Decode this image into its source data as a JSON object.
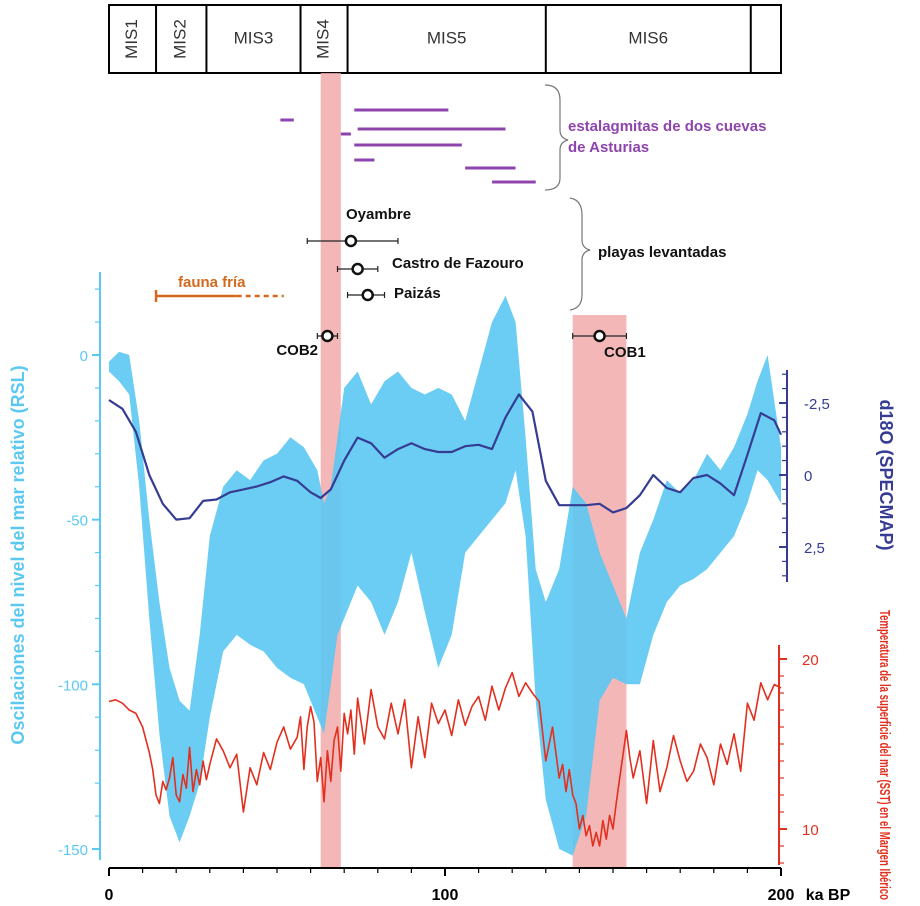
{
  "colors": {
    "rsl_fill": "#5BC8F2",
    "rsl_axis": "#5BC8F2",
    "d18o_line": "#353C92",
    "sst_line": "#E2301F",
    "highlight": "#F2AAAA",
    "stalagmite": "#8E44AD",
    "fauna": "#D2691E",
    "text": "#111111"
  },
  "chart_data": {
    "type": "line",
    "x_axis": {
      "range": [
        0,
        200
      ],
      "ticks": [
        "0",
        "100",
        "200"
      ],
      "unit_label": "ka BP"
    },
    "mis_stages": [
      {
        "label": "MIS1",
        "start": 0,
        "end": 14,
        "orientation": "vertical"
      },
      {
        "label": "MIS2",
        "start": 14,
        "end": 29,
        "orientation": "vertical"
      },
      {
        "label": "MIS3",
        "start": 29,
        "end": 57,
        "orientation": "horizontal"
      },
      {
        "label": "MIS4",
        "start": 57,
        "end": 71,
        "orientation": "vertical"
      },
      {
        "label": "MIS5",
        "start": 71,
        "end": 130,
        "orientation": "horizontal"
      },
      {
        "label": "MIS6",
        "start": 130,
        "end": 191,
        "orientation": "horizontal"
      }
    ],
    "highlight_bands": [
      {
        "start": 63,
        "end": 69
      },
      {
        "start": 138,
        "end": 154
      }
    ],
    "stalagmites": {
      "label_lines": [
        "estalagmitas de dos cuevas",
        "de Asturias"
      ],
      "segments": [
        {
          "x1": 51,
          "x2": 55
        },
        {
          "x1": 73,
          "x2": 101
        },
        {
          "x1": 69,
          "x2": 72
        },
        {
          "x1": 74,
          "x2": 118
        },
        {
          "x1": 73,
          "x2": 105
        },
        {
          "x1": 73,
          "x2": 79
        },
        {
          "x1": 106,
          "x2": 121
        },
        {
          "x1": 114,
          "x2": 127
        }
      ]
    },
    "raised_beaches": {
      "label": "playas levantadas",
      "points": [
        {
          "label": "Oyambre",
          "x": 72,
          "xmin": 59,
          "xmax": 86
        },
        {
          "label": "Castro de Fazouro",
          "x": 74,
          "xmin": 68,
          "xmax": 80
        },
        {
          "label": "Paizás",
          "x": 77,
          "xmin": 71,
          "xmax": 82
        },
        {
          "label": "COB2",
          "x": 65,
          "xmin": 62,
          "xmax": 68
        },
        {
          "label": "COB1",
          "x": 146,
          "xmin": 138,
          "xmax": 154
        }
      ]
    },
    "fauna_fria": {
      "label": "fauna fría",
      "solid": [
        14,
        38
      ],
      "dashed": [
        38,
        52
      ]
    },
    "rsl": {
      "name": "Oscilaciones del nivel del mar relativo (RSL)",
      "ylim": [
        -155,
        25
      ],
      "ticks": [
        "0",
        "-50",
        "-100",
        "-150"
      ],
      "x": [
        0,
        3,
        6,
        9,
        12,
        15,
        18,
        21,
        24,
        27,
        30,
        34,
        38,
        42,
        46,
        50,
        54,
        58,
        62,
        64,
        66,
        68,
        70,
        74,
        78,
        82,
        86,
        90,
        94,
        98,
        102,
        106,
        110,
        114,
        118,
        121,
        124,
        127,
        130,
        134,
        138,
        142,
        146,
        150,
        154,
        158,
        162,
        166,
        170,
        174,
        178,
        182,
        186,
        190,
        193,
        196,
        200
      ],
      "upper": [
        -2,
        1,
        0,
        -20,
        -50,
        -75,
        -95,
        -105,
        -108,
        -85,
        -55,
        -40,
        -35,
        -38,
        -32,
        -30,
        -25,
        -28,
        -35,
        -45,
        -40,
        -25,
        -10,
        -5,
        -15,
        -8,
        -5,
        -10,
        -12,
        -10,
        -12,
        -20,
        -5,
        10,
        18,
        10,
        -25,
        -65,
        -75,
        -65,
        -40,
        -45,
        -60,
        -70,
        -80,
        -60,
        -50,
        -38,
        -42,
        -38,
        -30,
        -35,
        -28,
        -18,
        -8,
        0,
        -28
      ],
      "lower": [
        -5,
        -8,
        -12,
        -40,
        -80,
        -115,
        -140,
        -148,
        -140,
        -130,
        -110,
        -90,
        -85,
        -88,
        -90,
        -95,
        -98,
        -100,
        -110,
        -115,
        -100,
        -85,
        -80,
        -70,
        -75,
        -85,
        -75,
        -60,
        -78,
        -95,
        -85,
        -60,
        -55,
        -50,
        -45,
        -35,
        -55,
        -105,
        -135,
        -150,
        -152,
        -140,
        -105,
        -98,
        -100,
        -100,
        -85,
        -75,
        -70,
        -68,
        -65,
        -60,
        -55,
        -45,
        -35,
        -38,
        -45
      ]
    },
    "d18o": {
      "name": "d18O (SPECMAP)",
      "ylim": [
        4.0,
        -4.0
      ],
      "ticks": [
        "-2,5",
        "0",
        "2,5"
      ],
      "x": [
        0,
        4,
        8,
        12,
        16,
        20,
        24,
        28,
        32,
        36,
        40,
        44,
        48,
        52,
        56,
        60,
        63,
        66,
        70,
        74,
        78,
        82,
        86,
        90,
        94,
        98,
        102,
        106,
        110,
        114,
        118,
        122,
        126,
        130,
        134,
        138,
        142,
        146,
        150,
        154,
        158,
        162,
        166,
        170,
        174,
        178,
        182,
        186,
        190,
        194,
        198,
        200
      ],
      "values": [
        -2.6,
        -2.3,
        -1.5,
        0.0,
        1.0,
        1.55,
        1.5,
        0.9,
        0.85,
        0.6,
        0.5,
        0.4,
        0.25,
        0.05,
        0.2,
        0.6,
        0.8,
        0.5,
        -0.5,
        -1.3,
        -1.1,
        -0.6,
        -0.9,
        -1.1,
        -0.9,
        -0.8,
        -0.8,
        -1.0,
        -1.05,
        -0.9,
        -2.0,
        -2.8,
        -2.2,
        0.2,
        1.05,
        1.05,
        1.05,
        1.0,
        1.3,
        1.15,
        0.7,
        0.0,
        0.45,
        0.6,
        0.1,
        0.0,
        0.3,
        0.7,
        -0.7,
        -2.15,
        -1.9,
        -1.4
      ]
    },
    "sst": {
      "name": "Temperatura de la superficie del mar (SST) en el Margen Ibérico",
      "ylim": [
        8,
        20
      ],
      "ticks": [
        "20",
        "10"
      ],
      "x": [
        0,
        2,
        4,
        6,
        8,
        10,
        12,
        13,
        14,
        15,
        16,
        17,
        18,
        19,
        20,
        21,
        22,
        23,
        24,
        25,
        26,
        27,
        28,
        29,
        30,
        32,
        34,
        36,
        38,
        40,
        42,
        44,
        46,
        48,
        50,
        52,
        54,
        56,
        57,
        58,
        59,
        60,
        61,
        62,
        63,
        64,
        65,
        66,
        67,
        68,
        69,
        70,
        71,
        72,
        73,
        74,
        76,
        78,
        80,
        82,
        84,
        86,
        88,
        90,
        92,
        94,
        96,
        98,
        100,
        102,
        104,
        106,
        108,
        110,
        112,
        114,
        116,
        118,
        120,
        122,
        124,
        126,
        128,
        130,
        132,
        134,
        135,
        136,
        137,
        138,
        139,
        140,
        141,
        142,
        143,
        144,
        145,
        146,
        147,
        148,
        149,
        150,
        151,
        152,
        153,
        154,
        155,
        156,
        158,
        160,
        162,
        164,
        166,
        168,
        170,
        172,
        174,
        176,
        178,
        180,
        182,
        184,
        186,
        188,
        190,
        192,
        194,
        196,
        198,
        200
      ],
      "values": [
        17.5,
        17.6,
        17.4,
        17.0,
        16.8,
        16.0,
        14.5,
        13.5,
        12.0,
        11.5,
        12.8,
        12.3,
        13.0,
        14.2,
        12.0,
        11.6,
        13.2,
        12.4,
        14.8,
        12.2,
        13.5,
        12.6,
        14.0,
        12.9,
        13.8,
        15.3,
        14.6,
        13.6,
        14.4,
        11.0,
        13.6,
        12.6,
        14.5,
        13.5,
        15.1,
        16.0,
        14.7,
        15.4,
        16.6,
        13.5,
        16.0,
        17.2,
        16.3,
        12.8,
        14.2,
        11.6,
        14.6,
        12.8,
        15.2,
        16.0,
        13.4,
        16.8,
        15.6,
        17.0,
        14.4,
        17.7,
        15.0,
        18.2,
        16.0,
        15.3,
        17.4,
        15.6,
        17.6,
        13.6,
        16.6,
        14.2,
        17.4,
        16.2,
        17.0,
        15.5,
        17.6,
        16.1,
        17.2,
        17.8,
        16.4,
        18.4,
        17.0,
        18.3,
        19.2,
        17.8,
        18.6,
        18.0,
        17.5,
        14.0,
        16.0,
        13.0,
        13.8,
        12.2,
        13.5,
        12.0,
        11.5,
        10.0,
        10.8,
        9.6,
        10.2,
        9.0,
        9.8,
        9.0,
        10.5,
        9.4,
        10.8,
        10.0,
        11.6,
        13.0,
        14.4,
        15.8,
        14.2,
        13.0,
        14.6,
        11.5,
        15.2,
        12.2,
        13.6,
        15.5,
        14.0,
        12.8,
        13.4,
        15.0,
        14.2,
        12.6,
        15.0,
        13.8,
        15.6,
        13.4,
        17.4,
        16.4,
        18.6,
        17.6,
        18.5,
        18.3
      ]
    }
  }
}
